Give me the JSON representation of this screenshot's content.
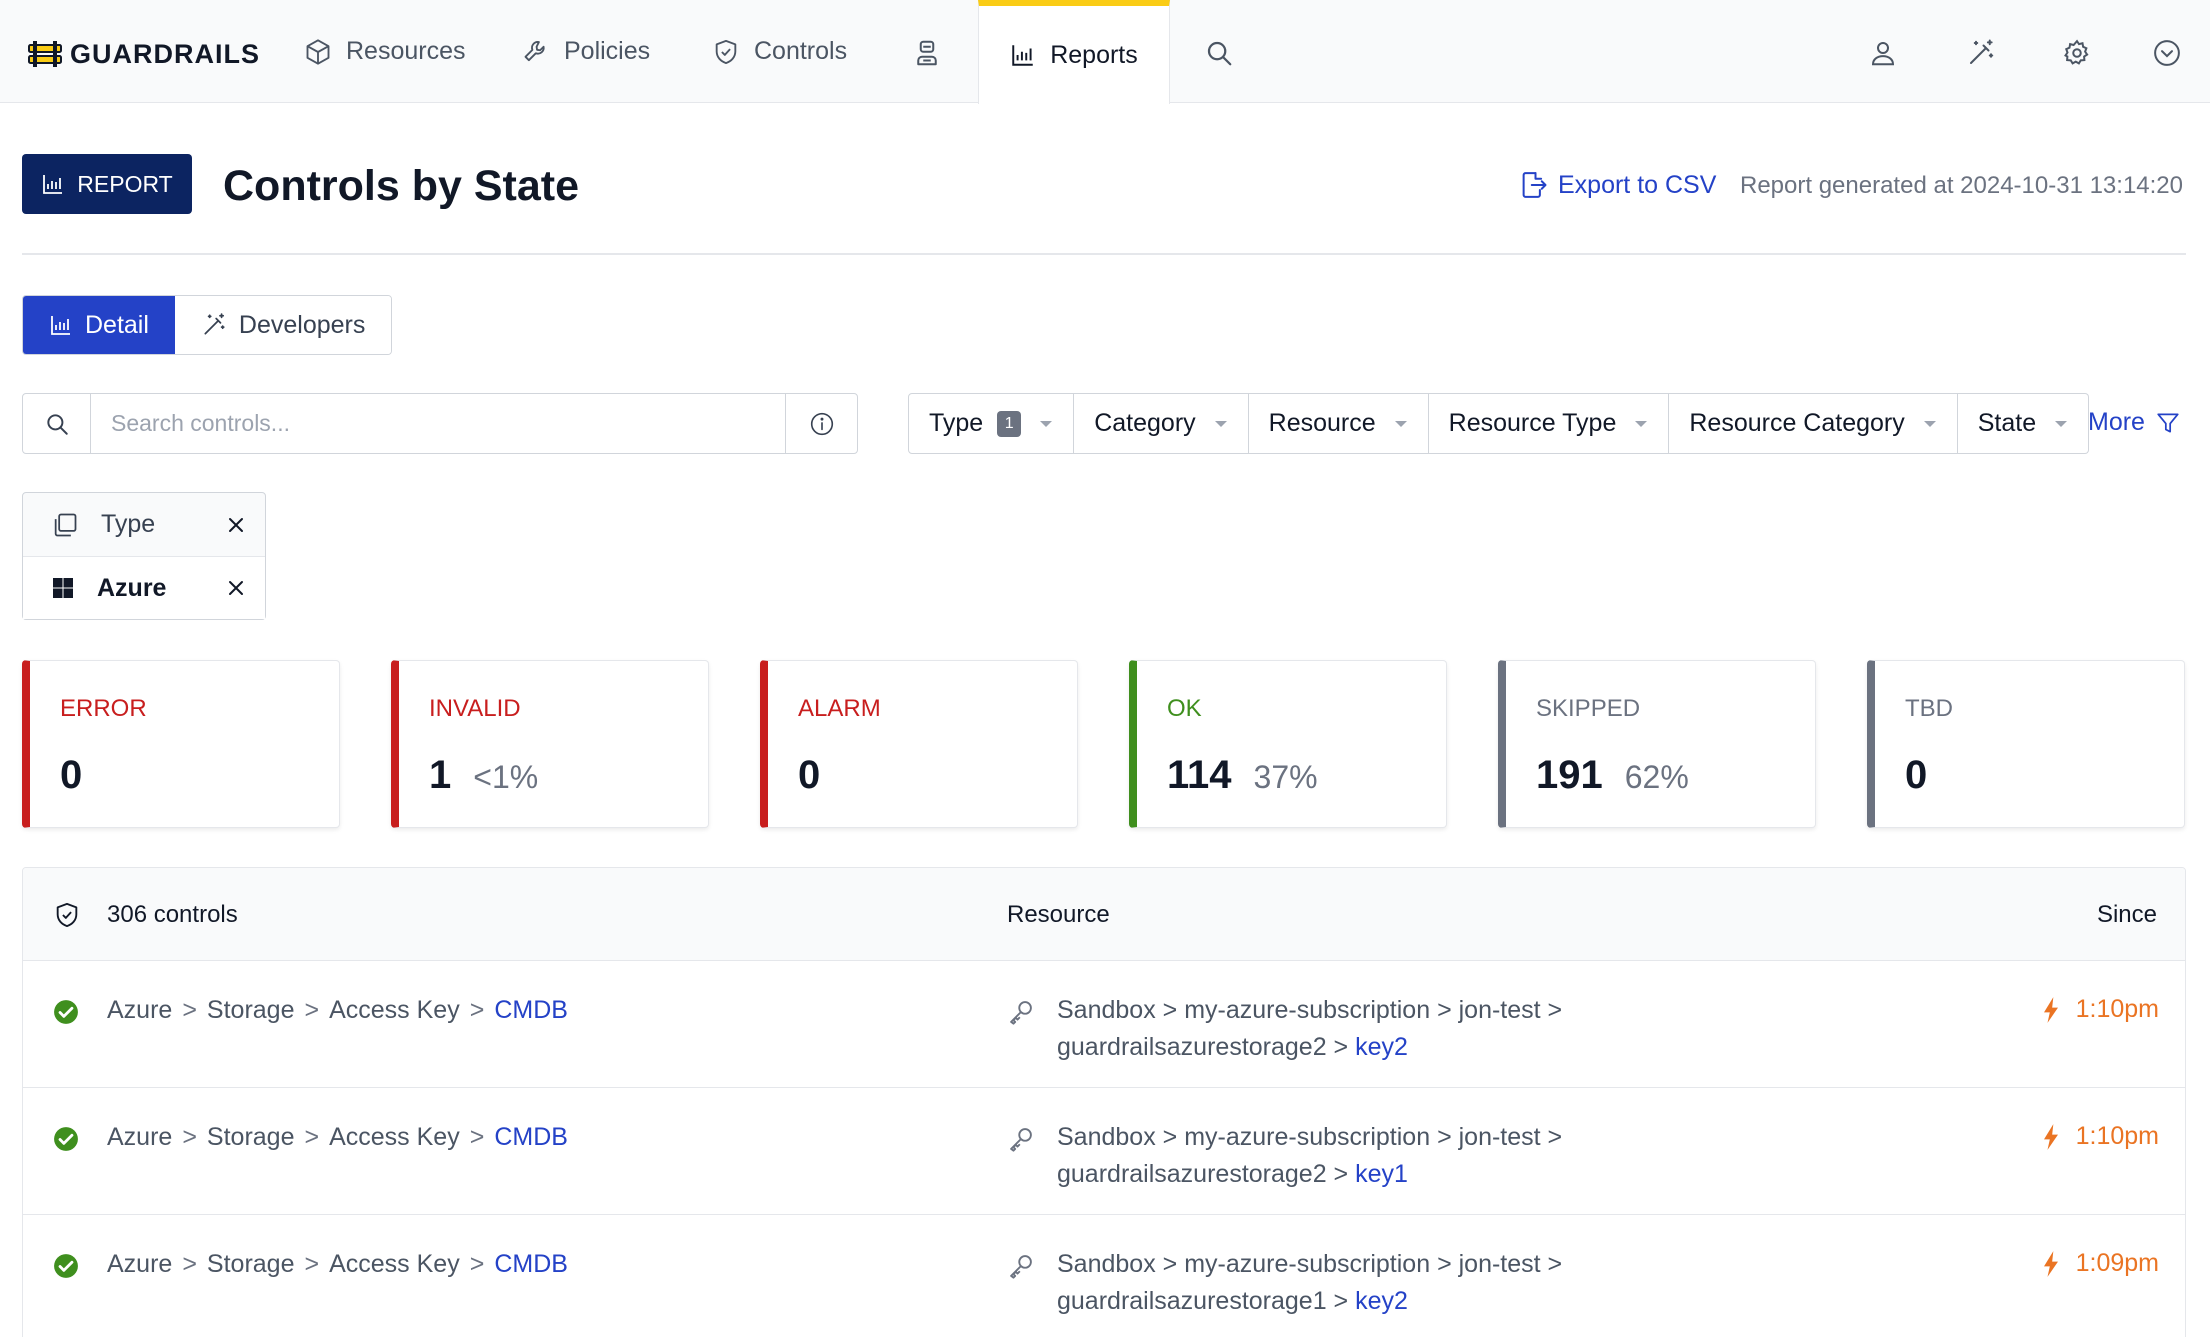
{
  "app": {
    "brand": "GUARDRAILS"
  },
  "nav": {
    "resources": "Resources",
    "policies": "Policies",
    "controls": "Controls",
    "reports": "Reports"
  },
  "header": {
    "badge": "REPORT",
    "title": "Controls by State",
    "export": "Export to CSV",
    "generated": "Report generated at 2024-10-31 13:14:20"
  },
  "view_toggle": {
    "detail": "Detail",
    "developers": "Developers",
    "selected": "Detail"
  },
  "search": {
    "placeholder": "Search controls...",
    "value": ""
  },
  "filters": {
    "type": "Type",
    "type_count": "1",
    "category": "Category",
    "resource": "Resource",
    "resource_type": "Resource Type",
    "resource_category": "Resource Category",
    "state": "State",
    "more": "More"
  },
  "applied_filter": {
    "label": "Type",
    "value": "Azure"
  },
  "states": [
    {
      "label": "ERROR",
      "value": "0",
      "pct": "",
      "color": "#c81e1e"
    },
    {
      "label": "INVALID",
      "value": "1",
      "pct": "<1%",
      "color": "#c81e1e"
    },
    {
      "label": "ALARM",
      "value": "0",
      "pct": "",
      "color": "#c81e1e"
    },
    {
      "label": "OK",
      "value": "114",
      "pct": "37%",
      "color": "#3f8f1e"
    },
    {
      "label": "SKIPPED",
      "value": "191",
      "pct": "62%",
      "color": "#6b7280"
    },
    {
      "label": "TBD",
      "value": "0",
      "pct": "",
      "color": "#6b7280"
    }
  ],
  "table": {
    "count": "306 controls",
    "col_resource": "Resource",
    "col_since": "Since",
    "rows": [
      {
        "c1": "Azure",
        "c2": "Storage",
        "c3": "Access Key",
        "c4": "CMDB",
        "r1": "Sandbox",
        "r2": "my-azure-subscription",
        "r3": "jon-test",
        "r4": "guardrailsazurestorage2",
        "r5": "key2",
        "since": "1:10pm"
      },
      {
        "c1": "Azure",
        "c2": "Storage",
        "c3": "Access Key",
        "c4": "CMDB",
        "r1": "Sandbox",
        "r2": "my-azure-subscription",
        "r3": "jon-test",
        "r4": "guardrailsazurestorage2",
        "r5": "key1",
        "since": "1:10pm"
      },
      {
        "c1": "Azure",
        "c2": "Storage",
        "c3": "Access Key",
        "c4": "CMDB",
        "r1": "Sandbox",
        "r2": "my-azure-subscription",
        "r3": "jon-test",
        "r4": "guardrailsazurestorage1",
        "r5": "key2",
        "since": "1:09pm"
      }
    ]
  },
  "colors": {
    "accent": "#2442c7",
    "brand_dark": "#0c2461",
    "active_tab": "#facc15",
    "since": "#ea7423",
    "ok": "#3f8f1e"
  }
}
